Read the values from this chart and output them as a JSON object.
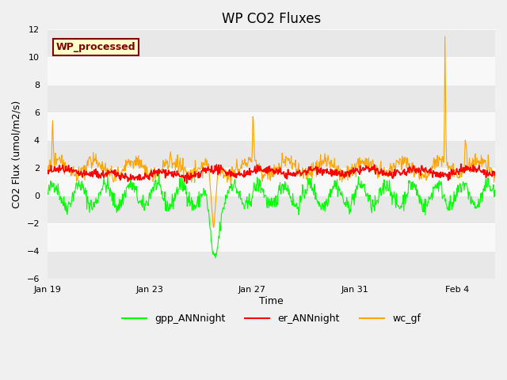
{
  "title": "WP CO2 Fluxes",
  "ylabel": "CO2 Flux (umol/m2/s)",
  "xlabel": "Time",
  "ylim": [
    -6,
    12
  ],
  "yticks": [
    -6,
    -4,
    -2,
    0,
    2,
    4,
    6,
    8,
    10,
    12
  ],
  "annotation_text": "WP_processed",
  "annotation_facecolor": "#FFFFCC",
  "annotation_edgecolor": "#800000",
  "annotation_textcolor": "#800000",
  "line_colors": {
    "gpp": "#00FF00",
    "er": "#FF0000",
    "wc": "#FFA500"
  },
  "legend_labels": [
    "gpp_ANNnight",
    "er_ANNnight",
    "wc_gf"
  ],
  "bg_color": "#F0F0F0",
  "plot_bg": "#F0F0F0",
  "band_color1": "#E8E8E8",
  "band_color2": "#F8F8F8"
}
